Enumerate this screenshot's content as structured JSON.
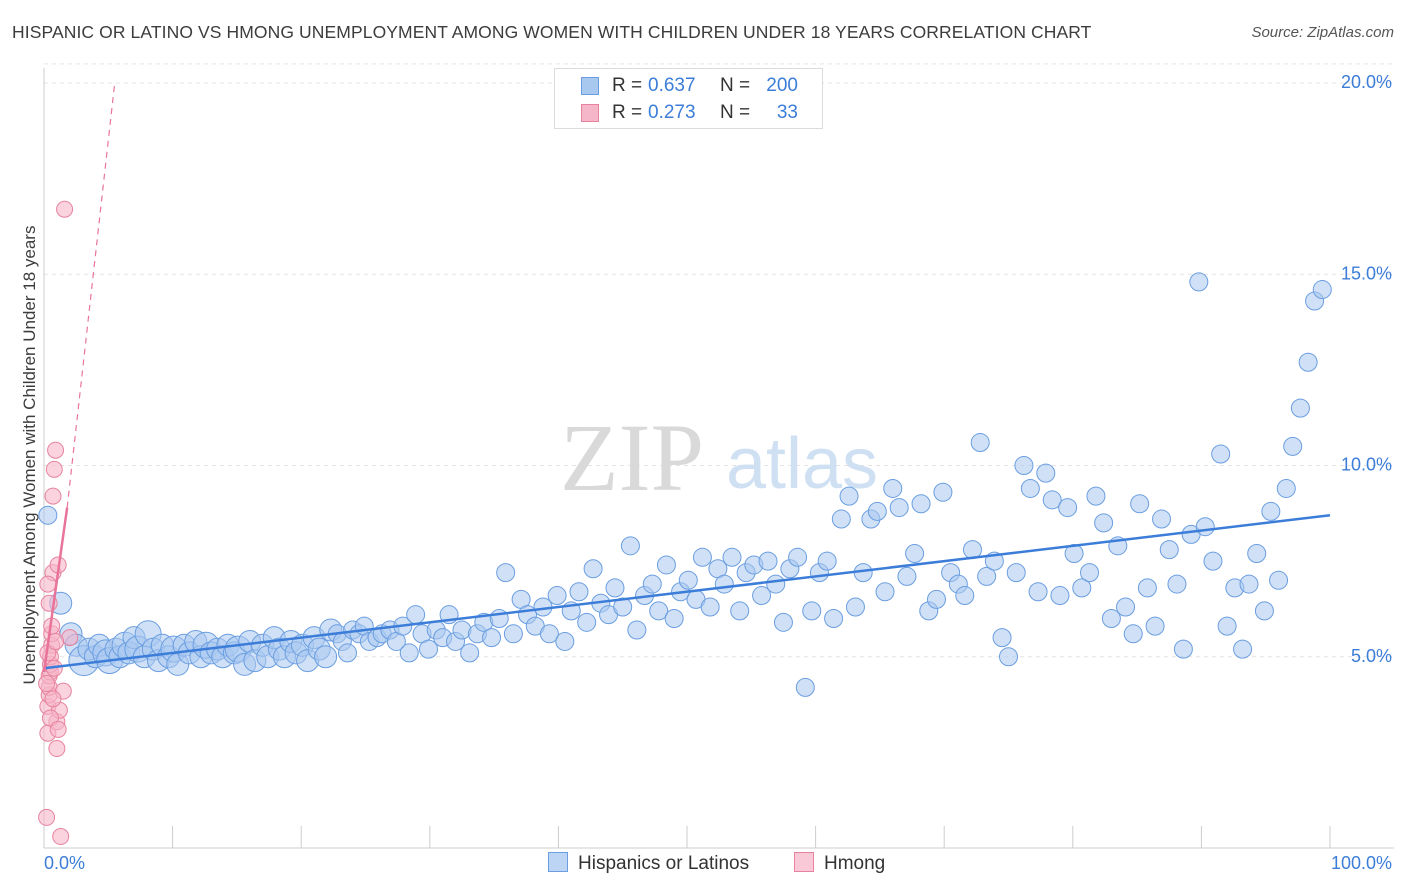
{
  "title": "HISPANIC OR LATINO VS HMONG UNEMPLOYMENT AMONG WOMEN WITH CHILDREN UNDER 18 YEARS CORRELATION CHART",
  "source": "Source: ZipAtlas.com",
  "watermark": {
    "zip": "ZIP",
    "atlas": "atlas"
  },
  "legend_top": [
    {
      "r_label": "R =",
      "r_value": "0.637",
      "n_label": "N =",
      "n_value": "200",
      "color": "#a9c8f0",
      "border": "#6b9ee0"
    },
    {
      "r_label": "R =",
      "r_value": "0.273",
      "n_label": "N =",
      "n_value": "33",
      "color": "#f6b6c9",
      "border": "#e7839f"
    }
  ],
  "legend_bottom": [
    {
      "label": "Hispanics or Latinos",
      "color": "#bcd5f4",
      "border": "#6b9ee0"
    },
    {
      "label": "Hmong",
      "color": "#f9c9d7",
      "border": "#e7839f"
    }
  ],
  "chart_data": {
    "type": "scatter",
    "title": "HISPANIC OR LATINO VS HMONG UNEMPLOYMENT AMONG WOMEN WITH CHILDREN UNDER 18 YEARS CORRELATION CHART",
    "xlabel": "",
    "ylabel": "Unemployment Among Women with Children Under 18 years",
    "xlim": [
      0,
      100
    ],
    "ylim": [
      0,
      20.5
    ],
    "x_tick_labels": [
      "0.0%",
      "100.0%"
    ],
    "y_ticks": [
      5,
      10,
      15,
      20
    ],
    "y_tick_labels": [
      "5.0%",
      "10.0%",
      "15.0%",
      "20.0%"
    ],
    "grid": "horizontal dashed",
    "colors": {
      "hispanic_fill": "#a9c8f0",
      "hispanic_stroke": "#6b9ee0",
      "hispanic_line": "#3b7dd8",
      "hmong_fill": "#f6b6c9",
      "hmong_stroke": "#e7839f",
      "hmong_line": "#e8749a",
      "tick_text": "#3b7dd8"
    },
    "series": [
      {
        "name": "Hispanics or Latinos",
        "trend": {
          "x": [
            0,
            100
          ],
          "y": [
            4.7,
            8.7
          ]
        },
        "points": [
          [
            0.3,
            8.7,
            1
          ],
          [
            1.3,
            6.4,
            2
          ],
          [
            2.1,
            5.6,
            2
          ],
          [
            2.5,
            5.3,
            2
          ],
          [
            3.1,
            4.9,
            4
          ],
          [
            3.5,
            5.2,
            2
          ],
          [
            4.0,
            5.0,
            2
          ],
          [
            4.3,
            5.3,
            2
          ],
          [
            4.8,
            5.1,
            3
          ],
          [
            5.1,
            4.9,
            3
          ],
          [
            5.6,
            5.2,
            2
          ],
          [
            5.9,
            5.0,
            2
          ],
          [
            6.3,
            5.3,
            3
          ],
          [
            6.6,
            5.1,
            2
          ],
          [
            7.0,
            5.5,
            2
          ],
          [
            7.3,
            5.2,
            3
          ],
          [
            7.8,
            5.0,
            2
          ],
          [
            8.1,
            5.6,
            3
          ],
          [
            8.5,
            5.2,
            2
          ],
          [
            8.9,
            4.9,
            2
          ],
          [
            9.2,
            5.3,
            2
          ],
          [
            9.7,
            5.0,
            2
          ],
          [
            10.1,
            5.2,
            3
          ],
          [
            10.4,
            4.8,
            2
          ],
          [
            10.9,
            5.3,
            2
          ],
          [
            11.3,
            5.1,
            2
          ],
          [
            11.8,
            5.4,
            2
          ],
          [
            12.2,
            5.0,
            2
          ],
          [
            12.6,
            5.3,
            3
          ],
          [
            13.0,
            5.1,
            2
          ],
          [
            13.5,
            5.2,
            2
          ],
          [
            13.9,
            5.0,
            2
          ],
          [
            14.3,
            5.3,
            2
          ],
          [
            14.8,
            5.1,
            2
          ],
          [
            15.1,
            5.2,
            3
          ],
          [
            15.6,
            4.8,
            2
          ],
          [
            16.0,
            5.4,
            2
          ],
          [
            16.4,
            4.9,
            2
          ],
          [
            17.0,
            5.3,
            2
          ],
          [
            17.4,
            5.0,
            2
          ],
          [
            17.9,
            5.5,
            2
          ],
          [
            18.3,
            5.2,
            2
          ],
          [
            18.7,
            5.0,
            2
          ],
          [
            19.2,
            5.4,
            2
          ],
          [
            19.6,
            5.1,
            2
          ],
          [
            20.1,
            5.3,
            2
          ],
          [
            20.5,
            4.9,
            2
          ],
          [
            21.0,
            5.5,
            2
          ],
          [
            21.4,
            5.2,
            2
          ],
          [
            21.9,
            5.0,
            2
          ],
          [
            22.3,
            5.7,
            2
          ],
          [
            22.8,
            5.6,
            1
          ],
          [
            23.2,
            5.4,
            1
          ],
          [
            23.6,
            5.1,
            1
          ],
          [
            24.0,
            5.7,
            1
          ],
          [
            24.5,
            5.6,
            1
          ],
          [
            24.9,
            5.8,
            1
          ],
          [
            25.3,
            5.4,
            1
          ],
          [
            25.9,
            5.5,
            1
          ],
          [
            26.3,
            5.6,
            1
          ],
          [
            26.9,
            5.7,
            1
          ],
          [
            27.4,
            5.4,
            1
          ],
          [
            27.9,
            5.8,
            1
          ],
          [
            28.4,
            5.1,
            1
          ],
          [
            28.9,
            6.1,
            1
          ],
          [
            29.4,
            5.6,
            1
          ],
          [
            29.9,
            5.2,
            1
          ],
          [
            30.5,
            5.7,
            1
          ],
          [
            31.0,
            5.5,
            1
          ],
          [
            31.5,
            6.1,
            1
          ],
          [
            32.0,
            5.4,
            1
          ],
          [
            32.5,
            5.7,
            1
          ],
          [
            33.1,
            5.1,
            1
          ],
          [
            33.7,
            5.6,
            1
          ],
          [
            34.2,
            5.9,
            1
          ],
          [
            34.8,
            5.5,
            1
          ],
          [
            35.4,
            6.0,
            1
          ],
          [
            35.9,
            7.2,
            1
          ],
          [
            36.5,
            5.6,
            1
          ],
          [
            37.1,
            6.5,
            1
          ],
          [
            37.6,
            6.1,
            1
          ],
          [
            38.2,
            5.8,
            1
          ],
          [
            38.8,
            6.3,
            1
          ],
          [
            39.3,
            5.6,
            1
          ],
          [
            39.9,
            6.6,
            1
          ],
          [
            40.5,
            5.4,
            1
          ],
          [
            41.0,
            6.2,
            1
          ],
          [
            41.6,
            6.7,
            1
          ],
          [
            42.2,
            5.9,
            1
          ],
          [
            42.7,
            7.3,
            1
          ],
          [
            43.3,
            6.4,
            1
          ],
          [
            43.9,
            6.1,
            1
          ],
          [
            44.4,
            6.8,
            1
          ],
          [
            45.0,
            6.3,
            1
          ],
          [
            45.6,
            7.9,
            1
          ],
          [
            46.1,
            5.7,
            1
          ],
          [
            46.7,
            6.6,
            1
          ],
          [
            47.3,
            6.9,
            1
          ],
          [
            47.8,
            6.2,
            1
          ],
          [
            48.4,
            7.4,
            1
          ],
          [
            49.0,
            6.0,
            1
          ],
          [
            49.5,
            6.7,
            1
          ],
          [
            50.1,
            7.0,
            1
          ],
          [
            50.7,
            6.5,
            1
          ],
          [
            51.2,
            7.6,
            1
          ],
          [
            51.8,
            6.3,
            1
          ],
          [
            52.4,
            7.3,
            1
          ],
          [
            52.9,
            6.9,
            1
          ],
          [
            53.5,
            7.6,
            1
          ],
          [
            54.1,
            6.2,
            1
          ],
          [
            54.6,
            7.2,
            1
          ],
          [
            55.2,
            7.4,
            1
          ],
          [
            55.8,
            6.6,
            1
          ],
          [
            56.3,
            7.5,
            1
          ],
          [
            56.9,
            6.9,
            1
          ],
          [
            57.5,
            5.9,
            1
          ],
          [
            58.0,
            7.3,
            1
          ],
          [
            58.6,
            7.6,
            1
          ],
          [
            59.2,
            4.2,
            1
          ],
          [
            59.7,
            6.2,
            1
          ],
          [
            60.3,
            7.2,
            1
          ],
          [
            60.9,
            7.5,
            1
          ],
          [
            61.4,
            6.0,
            1
          ],
          [
            62.0,
            8.6,
            1
          ],
          [
            62.6,
            9.2,
            1
          ],
          [
            63.1,
            6.3,
            1
          ],
          [
            63.7,
            7.2,
            1
          ],
          [
            64.3,
            8.6,
            1
          ],
          [
            64.8,
            8.8,
            1
          ],
          [
            65.4,
            6.7,
            1
          ],
          [
            66.0,
            9.4,
            1
          ],
          [
            66.5,
            8.9,
            1
          ],
          [
            67.1,
            7.1,
            1
          ],
          [
            67.7,
            7.7,
            1
          ],
          [
            68.2,
            9.0,
            1
          ],
          [
            68.8,
            6.2,
            1
          ],
          [
            69.4,
            6.5,
            1
          ],
          [
            69.9,
            9.3,
            1
          ],
          [
            70.5,
            7.2,
            1
          ],
          [
            71.1,
            6.9,
            1
          ],
          [
            71.6,
            6.6,
            1
          ],
          [
            72.2,
            7.8,
            1
          ],
          [
            72.8,
            10.6,
            1
          ],
          [
            73.3,
            7.1,
            1
          ],
          [
            73.9,
            7.5,
            1
          ],
          [
            74.5,
            5.5,
            1
          ],
          [
            75.0,
            5.0,
            1
          ],
          [
            75.6,
            7.2,
            1
          ],
          [
            76.2,
            10.0,
            1
          ],
          [
            76.7,
            9.4,
            1
          ],
          [
            77.3,
            6.7,
            1
          ],
          [
            77.9,
            9.8,
            1
          ],
          [
            78.4,
            9.1,
            1
          ],
          [
            79.0,
            6.6,
            1
          ],
          [
            79.6,
            8.9,
            1
          ],
          [
            80.1,
            7.7,
            1
          ],
          [
            80.7,
            6.8,
            1
          ],
          [
            81.3,
            7.2,
            1
          ],
          [
            81.8,
            9.2,
            1
          ],
          [
            82.4,
            8.5,
            1
          ],
          [
            83.0,
            6.0,
            1
          ],
          [
            83.5,
            7.9,
            1
          ],
          [
            84.1,
            6.3,
            1
          ],
          [
            84.7,
            5.6,
            1
          ],
          [
            85.2,
            9.0,
            1
          ],
          [
            85.8,
            6.8,
            1
          ],
          [
            86.4,
            5.8,
            1
          ],
          [
            86.9,
            8.6,
            1
          ],
          [
            87.5,
            7.8,
            1
          ],
          [
            88.1,
            6.9,
            1
          ],
          [
            88.6,
            5.2,
            1
          ],
          [
            89.2,
            8.2,
            1
          ],
          [
            89.8,
            14.8,
            1
          ],
          [
            90.3,
            8.4,
            1
          ],
          [
            90.9,
            7.5,
            1
          ],
          [
            91.5,
            10.3,
            1
          ],
          [
            92.0,
            5.8,
            1
          ],
          [
            92.6,
            6.8,
            1
          ],
          [
            93.2,
            5.2,
            1
          ],
          [
            93.7,
            6.9,
            1
          ],
          [
            94.3,
            7.7,
            1
          ],
          [
            94.9,
            6.2,
            1
          ],
          [
            95.4,
            8.8,
            1
          ],
          [
            96.0,
            7.0,
            1
          ],
          [
            96.6,
            9.4,
            1
          ],
          [
            97.1,
            10.5,
            1
          ],
          [
            97.7,
            11.5,
            1
          ],
          [
            98.3,
            12.7,
            1
          ],
          [
            98.8,
            14.3,
            1
          ],
          [
            99.4,
            14.6,
            1
          ]
        ]
      },
      {
        "name": "Hmong",
        "trend": {
          "x": [
            0,
            1.8
          ],
          "y": [
            4.6,
            8.9
          ]
        },
        "trend_extension": {
          "x": [
            1.8,
            5.5
          ],
          "y": [
            8.9,
            20.0
          ]
        },
        "points": [
          [
            0.2,
            0.8
          ],
          [
            0.3,
            3.0
          ],
          [
            0.3,
            3.7
          ],
          [
            0.4,
            4.0
          ],
          [
            0.4,
            4.2
          ],
          [
            0.4,
            4.5
          ],
          [
            0.5,
            4.6
          ],
          [
            0.5,
            4.8
          ],
          [
            0.5,
            5.0
          ],
          [
            0.6,
            5.3
          ],
          [
            0.6,
            5.6
          ],
          [
            0.7,
            7.2
          ],
          [
            0.7,
            9.2
          ],
          [
            0.8,
            9.9
          ],
          [
            0.9,
            10.4
          ],
          [
            1.0,
            2.6
          ],
          [
            1.0,
            3.3
          ],
          [
            1.2,
            3.6
          ],
          [
            1.3,
            0.3
          ],
          [
            1.5,
            4.1
          ],
          [
            2.0,
            5.5
          ],
          [
            1.1,
            7.4
          ],
          [
            0.3,
            6.9
          ],
          [
            0.4,
            6.4
          ],
          [
            0.6,
            5.8
          ],
          [
            0.2,
            4.3
          ],
          [
            0.3,
            5.1
          ],
          [
            0.5,
            3.4
          ],
          [
            0.7,
            3.9
          ],
          [
            0.8,
            4.7
          ],
          [
            0.9,
            5.4
          ],
          [
            1.1,
            3.1
          ],
          [
            1.6,
            16.7
          ]
        ]
      }
    ]
  }
}
